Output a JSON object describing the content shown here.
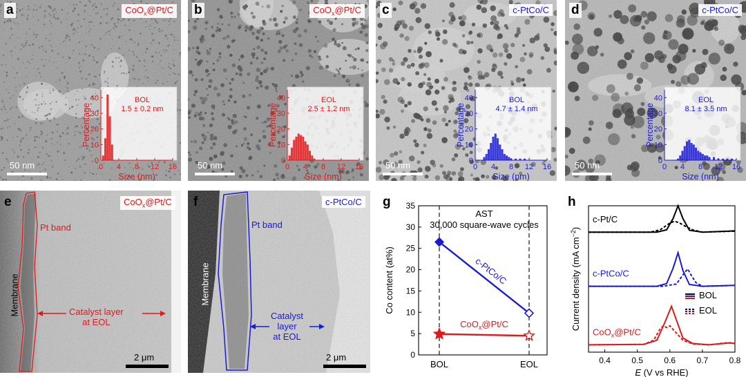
{
  "figure": {
    "panel_letters": {
      "a": "a",
      "b": "b",
      "c": "c",
      "d": "d",
      "e": "e",
      "f": "f",
      "g": "g",
      "h": "h"
    },
    "colors": {
      "red": "#e0191b",
      "blue": "#1a1ad6",
      "black": "#000000"
    }
  },
  "top_panels": [
    {
      "letter": "a",
      "tag_prefix": "CoO",
      "tag_sub": "x",
      "tag_suffix": "@Pt/C",
      "tag_color": "red",
      "state": "BOL",
      "size_text": "1.5 ± 0.2 nm",
      "scale": "50 nm",
      "ylabel": "Percentage",
      "xlabel": "Size (nm)",
      "yticks": [
        "0",
        "10",
        "20",
        "30",
        "40"
      ],
      "xticks": [
        "0",
        "4",
        "8",
        "12",
        "16"
      ]
    },
    {
      "letter": "b",
      "tag_prefix": "CoO",
      "tag_sub": "x",
      "tag_suffix": "@Pt/C",
      "tag_color": "red",
      "state": "EOL",
      "size_text": "2.5 ± 1.2 nm",
      "scale": "50 nm",
      "ylabel": "Percentage",
      "xlabel": "Size (nm)",
      "yticks": [
        "0",
        "10",
        "20",
        "30",
        "40"
      ],
      "xticks": [
        "0",
        "4",
        "8",
        "12",
        "16"
      ]
    },
    {
      "letter": "c",
      "tag_prefix": "c-PtCo/C",
      "tag_sub": "",
      "tag_suffix": "",
      "tag_color": "blue",
      "state": "BOL",
      "size_text": "4.7 ± 1.4 nm",
      "scale": "50 nm",
      "ylabel": "Percentage",
      "xlabel": "Size (nm)",
      "yticks": [
        "0",
        "10",
        "20",
        "30",
        "40"
      ],
      "xticks": [
        "0",
        "4",
        "8",
        "12",
        "16"
      ]
    },
    {
      "letter": "d",
      "tag_prefix": "c-PtCo/C",
      "tag_sub": "",
      "tag_suffix": "",
      "tag_color": "blue",
      "state": "EOL",
      "size_text": "8.1 ± 3.5 nm",
      "scale": "50 nm",
      "ylabel": "Percentage",
      "xlabel": "Size (nm)",
      "yticks": [
        "0",
        "10",
        "20",
        "30",
        "40"
      ],
      "xticks": [
        "0",
        "4",
        "8",
        "12",
        "16"
      ]
    }
  ],
  "histograms": [
    {
      "bins": [
        0.5,
        1.0,
        1.5,
        2.0,
        2.5
      ],
      "values": [
        3,
        14,
        42,
        28,
        10
      ]
    },
    {
      "bins": [
        0.5,
        1.0,
        1.5,
        2.0,
        2.5,
        3.0,
        3.5,
        4.0,
        4.5,
        5.0,
        5.5,
        6.0
      ],
      "values": [
        3,
        8,
        13,
        15,
        17,
        16,
        15,
        12,
        10,
        6,
        3,
        1
      ]
    },
    {
      "bins": [
        2.0,
        2.5,
        3.0,
        3.5,
        4.0,
        4.5,
        5.0,
        5.5,
        6.0,
        6.5,
        7.0,
        7.5,
        8.0,
        9.0,
        10.0,
        11.0
      ],
      "values": [
        2,
        4,
        7,
        11,
        15,
        17,
        14,
        10,
        7,
        4,
        3,
        2,
        1,
        1,
        1,
        1
      ]
    },
    {
      "bins": [
        3.0,
        3.5,
        4.0,
        4.5,
        5.0,
        5.5,
        6.0,
        6.5,
        7.0,
        7.5,
        8.0,
        8.5,
        9.0,
        9.5,
        10,
        11,
        12,
        13,
        14,
        15
      ],
      "values": [
        1,
        3,
        6,
        9,
        12,
        13,
        11,
        10,
        8,
        6,
        5,
        4,
        3,
        3,
        2,
        2,
        1,
        1,
        1,
        1
      ]
    }
  ],
  "panel_e": {
    "tag_prefix": "CoO",
    "tag_sub": "x",
    "tag_suffix": "@Pt/C",
    "band": "Pt band",
    "membrane": "Membrane",
    "catalyst1": "Catalyst layer",
    "catalyst2": "at EOL",
    "scale": "2 μm"
  },
  "panel_f": {
    "tag": "c-PtCo/C",
    "band": "Pt band",
    "membrane": "Membrane",
    "catalyst1": "Catalyst",
    "catalyst2": "layer",
    "catalyst3": "at EOL",
    "scale": "2 μm"
  },
  "chart_data": [
    {
      "type": "line",
      "panel": "g",
      "title": "AST",
      "subtitle": "30,000 square-wave cycles",
      "ylabel": "Co content (at%)",
      "categories": [
        "BOL",
        "EOL"
      ],
      "ylim": [
        0,
        35
      ],
      "yticks": [
        "0",
        "5",
        "10",
        "15",
        "20",
        "25",
        "30",
        "35"
      ],
      "series": [
        {
          "name": "c-PtCo/C",
          "values": [
            26.5,
            9.8
          ],
          "color": "#1a1ad6"
        },
        {
          "name_prefix": "CoO",
          "name_sub": "x",
          "name_suffix": "@Pt/C",
          "values": [
            4.9,
            4.5
          ],
          "color": "#e0191b"
        }
      ]
    },
    {
      "type": "line",
      "panel": "h",
      "xlabel_italic": "E",
      "xlabel_rest": " (V vs RHE)",
      "ylabel_main": "Current density (mA cm",
      "ylabel_sup": "−2",
      "ylabel_end": ")",
      "xlim": [
        0.35,
        0.8
      ],
      "xticks": [
        "0.4",
        "0.5",
        "0.6",
        "0.7",
        "0.8"
      ],
      "legend": [
        {
          "label": "BOL",
          "style": "solid"
        },
        {
          "label": "EOL",
          "style": "dashed"
        }
      ],
      "series": [
        {
          "name": "c-Pt/C",
          "color": "#000000",
          "baseline": 0.82,
          "bol": [
            [
              0.35,
              0
            ],
            [
              0.56,
              0.0
            ],
            [
              0.59,
              0.05
            ],
            [
              0.61,
              0.3
            ],
            [
              0.625,
              0.58
            ],
            [
              0.64,
              0.3
            ],
            [
              0.66,
              0.04
            ],
            [
              0.7,
              0.0
            ],
            [
              0.78,
              0.02
            ],
            [
              0.8,
              0.03
            ]
          ],
          "eol": [
            [
              0.35,
              0
            ],
            [
              0.54,
              0.0
            ],
            [
              0.57,
              0.05
            ],
            [
              0.6,
              0.2
            ],
            [
              0.615,
              0.24
            ],
            [
              0.63,
              0.2
            ],
            [
              0.65,
              0.12
            ],
            [
              0.67,
              0.05
            ],
            [
              0.7,
              0.0
            ],
            [
              0.8,
              0.02
            ]
          ]
        },
        {
          "name": "c-PtCo/C",
          "color": "#1a1ad6",
          "baseline": 0.45,
          "bol": [
            [
              0.35,
              0
            ],
            [
              0.56,
              0.0
            ],
            [
              0.59,
              0.06
            ],
            [
              0.61,
              0.4
            ],
            [
              0.625,
              0.74
            ],
            [
              0.64,
              0.35
            ],
            [
              0.66,
              0.04
            ],
            [
              0.7,
              0.0
            ],
            [
              0.8,
              0.02
            ]
          ],
          "eol": [
            [
              0.35,
              0
            ],
            [
              0.58,
              0.0
            ],
            [
              0.62,
              0.05
            ],
            [
              0.645,
              0.3
            ],
            [
              0.655,
              0.38
            ],
            [
              0.665,
              0.25
            ],
            [
              0.68,
              0.08
            ],
            [
              0.7,
              0.0
            ],
            [
              0.8,
              0.02
            ]
          ]
        },
        {
          "name_prefix": "CoO",
          "name_sub": "x",
          "name_suffix": "@Pt/C",
          "color": "#e0191b",
          "baseline": 0.05,
          "bol": [
            [
              0.35,
              0
            ],
            [
              0.52,
              0.01
            ],
            [
              0.56,
              0.1
            ],
            [
              0.585,
              0.5
            ],
            [
              0.605,
              0.85
            ],
            [
              0.62,
              0.55
            ],
            [
              0.64,
              0.15
            ],
            [
              0.67,
              0.03
            ],
            [
              0.72,
              0.0
            ],
            [
              0.78,
              0.04
            ],
            [
              0.8,
              0.03
            ]
          ],
          "eol": [
            [
              0.35,
              0
            ],
            [
              0.52,
              0.01
            ],
            [
              0.55,
              0.1
            ],
            [
              0.57,
              0.35
            ],
            [
              0.58,
              0.42
            ],
            [
              0.59,
              0.38
            ],
            [
              0.6,
              0.42
            ],
            [
              0.615,
              0.3
            ],
            [
              0.64,
              0.1
            ],
            [
              0.67,
              0.02
            ],
            [
              0.72,
              0.0
            ],
            [
              0.78,
              0.05
            ],
            [
              0.8,
              0.03
            ]
          ]
        }
      ]
    }
  ]
}
